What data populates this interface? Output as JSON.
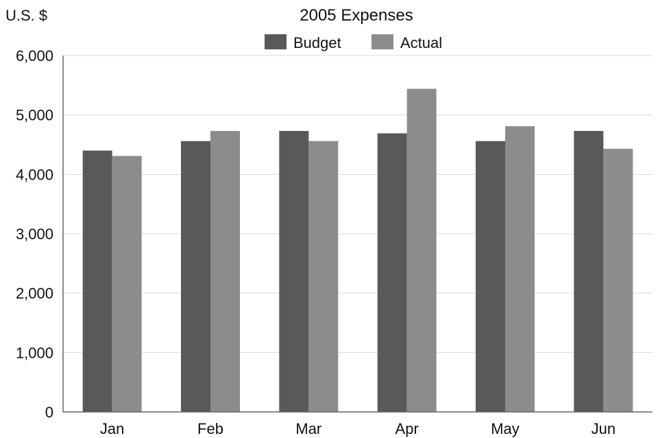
{
  "chart_data": {
    "type": "bar",
    "title": "2005 Expenses",
    "ylabel": "U.S. $",
    "xlabel": "",
    "categories": [
      "Jan",
      "Feb",
      "Mar",
      "Apr",
      "May",
      "Jun"
    ],
    "series": [
      {
        "name": "Budget",
        "color": "#595959",
        "values": [
          4400,
          4560,
          4730,
          4690,
          4560,
          4730
        ]
      },
      {
        "name": "Actual",
        "color": "#8c8c8c",
        "values": [
          4310,
          4730,
          4560,
          5440,
          4810,
          4430
        ]
      }
    ],
    "ylim": [
      0,
      6000
    ],
    "yticks": [
      0,
      1000,
      2000,
      3000,
      4000,
      5000,
      6000
    ],
    "ytick_labels": [
      "0",
      "1,000",
      "2,000",
      "3,000",
      "4,000",
      "5,000",
      "6,000"
    ],
    "grid": true,
    "legend": "top-center"
  }
}
